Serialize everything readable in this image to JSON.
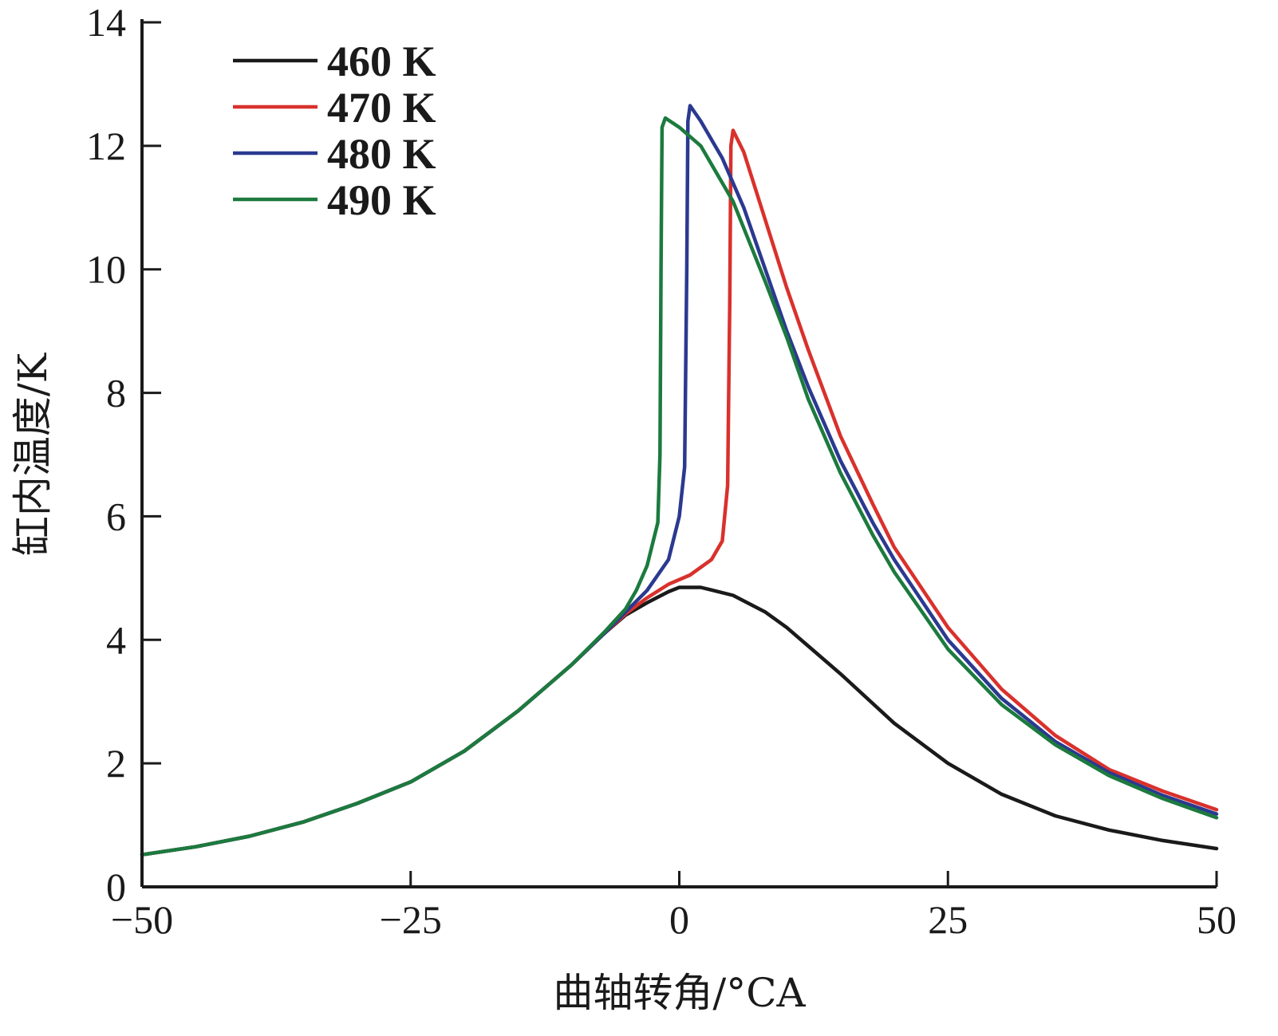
{
  "chart_data": {
    "type": "line",
    "title": "",
    "xlabel": "曲轴转角/°CA",
    "ylabel": "缸内温度/K",
    "xlim": [
      -50,
      50
    ],
    "ylim": [
      0,
      14
    ],
    "x_ticks": [
      -50,
      -25,
      0,
      25,
      50
    ],
    "x_tick_labels": [
      "−50",
      "−25",
      "0",
      "25",
      "50"
    ],
    "y_ticks": [
      0,
      2,
      4,
      6,
      8,
      10,
      12,
      14
    ],
    "y_tick_labels": [
      "0",
      "2",
      "4",
      "6",
      "8",
      "10",
      "12",
      "14"
    ],
    "grid": false,
    "legend_position": "top-left",
    "series": [
      {
        "name": "460 K",
        "color": "#1a1a1a",
        "points": [
          [
            -50,
            0.52
          ],
          [
            -45,
            0.65
          ],
          [
            -40,
            0.82
          ],
          [
            -35,
            1.05
          ],
          [
            -30,
            1.35
          ],
          [
            -25,
            1.7
          ],
          [
            -20,
            2.2
          ],
          [
            -15,
            2.85
          ],
          [
            -10,
            3.6
          ],
          [
            -7,
            4.1
          ],
          [
            -5,
            4.4
          ],
          [
            -3,
            4.6
          ],
          [
            -1,
            4.78
          ],
          [
            0,
            4.85
          ],
          [
            2,
            4.85
          ],
          [
            5,
            4.72
          ],
          [
            8,
            4.45
          ],
          [
            10,
            4.2
          ],
          [
            15,
            3.45
          ],
          [
            20,
            2.65
          ],
          [
            25,
            2.0
          ],
          [
            30,
            1.5
          ],
          [
            35,
            1.15
          ],
          [
            40,
            0.92
          ],
          [
            45,
            0.75
          ],
          [
            50,
            0.62
          ]
        ]
      },
      {
        "name": "470 K",
        "color": "#d9312c",
        "points": [
          [
            -50,
            0.52
          ],
          [
            -45,
            0.65
          ],
          [
            -40,
            0.82
          ],
          [
            -35,
            1.05
          ],
          [
            -30,
            1.35
          ],
          [
            -25,
            1.7
          ],
          [
            -20,
            2.2
          ],
          [
            -15,
            2.85
          ],
          [
            -10,
            3.6
          ],
          [
            -7,
            4.1
          ],
          [
            -5,
            4.42
          ],
          [
            -3,
            4.68
          ],
          [
            -1,
            4.9
          ],
          [
            1,
            5.05
          ],
          [
            3,
            5.3
          ],
          [
            4,
            5.6
          ],
          [
            4.5,
            6.5
          ],
          [
            4.7,
            9.5
          ],
          [
            4.8,
            12.0
          ],
          [
            5,
            12.25
          ],
          [
            6,
            11.9
          ],
          [
            8,
            10.8
          ],
          [
            10,
            9.7
          ],
          [
            12,
            8.7
          ],
          [
            15,
            7.3
          ],
          [
            18,
            6.2
          ],
          [
            20,
            5.5
          ],
          [
            25,
            4.2
          ],
          [
            30,
            3.2
          ],
          [
            35,
            2.45
          ],
          [
            40,
            1.9
          ],
          [
            45,
            1.55
          ],
          [
            50,
            1.25
          ]
        ]
      },
      {
        "name": "480 K",
        "color": "#2b3990",
        "points": [
          [
            -50,
            0.52
          ],
          [
            -45,
            0.65
          ],
          [
            -40,
            0.82
          ],
          [
            -35,
            1.05
          ],
          [
            -30,
            1.35
          ],
          [
            -25,
            1.7
          ],
          [
            -20,
            2.2
          ],
          [
            -15,
            2.85
          ],
          [
            -10,
            3.6
          ],
          [
            -7,
            4.1
          ],
          [
            -5,
            4.45
          ],
          [
            -3,
            4.8
          ],
          [
            -1,
            5.3
          ],
          [
            0,
            6.0
          ],
          [
            0.5,
            6.8
          ],
          [
            0.7,
            10.0
          ],
          [
            0.8,
            12.4
          ],
          [
            1,
            12.65
          ],
          [
            2,
            12.4
          ],
          [
            4,
            11.8
          ],
          [
            6,
            11.0
          ],
          [
            8,
            10.0
          ],
          [
            10,
            9.0
          ],
          [
            12,
            8.1
          ],
          [
            15,
            6.9
          ],
          [
            18,
            5.9
          ],
          [
            20,
            5.3
          ],
          [
            25,
            4.0
          ],
          [
            30,
            3.05
          ],
          [
            35,
            2.35
          ],
          [
            40,
            1.85
          ],
          [
            45,
            1.48
          ],
          [
            50,
            1.18
          ]
        ]
      },
      {
        "name": "490 K",
        "color": "#1c7a3e",
        "points": [
          [
            -50,
            0.52
          ],
          [
            -45,
            0.65
          ],
          [
            -40,
            0.82
          ],
          [
            -35,
            1.05
          ],
          [
            -30,
            1.35
          ],
          [
            -25,
            1.7
          ],
          [
            -20,
            2.2
          ],
          [
            -15,
            2.85
          ],
          [
            -10,
            3.6
          ],
          [
            -7,
            4.12
          ],
          [
            -5,
            4.5
          ],
          [
            -4,
            4.8
          ],
          [
            -3,
            5.2
          ],
          [
            -2,
            5.9
          ],
          [
            -1.8,
            7.0
          ],
          [
            -1.7,
            10.0
          ],
          [
            -1.6,
            12.3
          ],
          [
            -1.3,
            12.45
          ],
          [
            0,
            12.3
          ],
          [
            2,
            12.0
          ],
          [
            5,
            11.1
          ],
          [
            8,
            9.8
          ],
          [
            10,
            8.9
          ],
          [
            12,
            7.9
          ],
          [
            15,
            6.7
          ],
          [
            18,
            5.7
          ],
          [
            20,
            5.1
          ],
          [
            25,
            3.85
          ],
          [
            30,
            2.95
          ],
          [
            35,
            2.3
          ],
          [
            40,
            1.8
          ],
          [
            45,
            1.43
          ],
          [
            50,
            1.12
          ]
        ]
      }
    ]
  }
}
